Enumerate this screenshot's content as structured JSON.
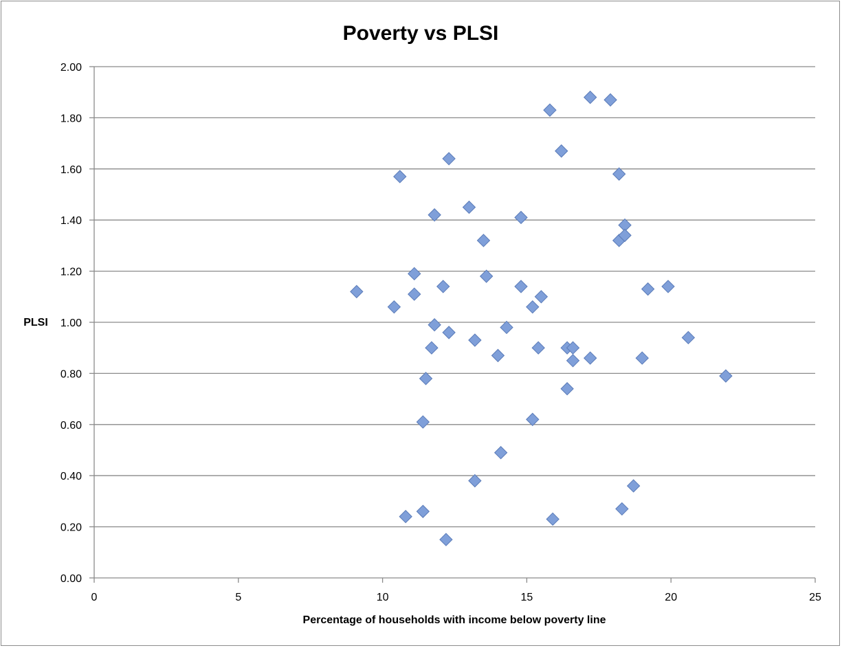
{
  "chart_data": {
    "type": "scatter",
    "title": "Poverty vs PLSI",
    "xlabel": "Percentage of households with income below poverty line",
    "ylabel": "PLSI",
    "xlim": [
      0,
      25
    ],
    "ylim": [
      0,
      2
    ],
    "x_ticks": [
      "0",
      "5",
      "10",
      "15",
      "20",
      "25"
    ],
    "y_ticks": [
      "0.00",
      "0.20",
      "0.40",
      "0.60",
      "0.80",
      "1.00",
      "1.20",
      "1.40",
      "1.60",
      "1.80",
      "2.00"
    ],
    "grid": "horizontal",
    "legend": "none",
    "marker": "diamond",
    "marker_color": "#7f9fd9",
    "series": [
      {
        "points": [
          [
            9.1,
            1.12
          ],
          [
            10.4,
            1.06
          ],
          [
            10.6,
            1.57
          ],
          [
            10.8,
            0.24
          ],
          [
            11.1,
            1.19
          ],
          [
            11.1,
            1.11
          ],
          [
            11.4,
            0.26
          ],
          [
            11.4,
            0.61
          ],
          [
            11.5,
            0.78
          ],
          [
            11.7,
            0.9
          ],
          [
            11.8,
            0.99
          ],
          [
            11.8,
            1.42
          ],
          [
            12.1,
            1.14
          ],
          [
            12.2,
            0.15
          ],
          [
            12.3,
            0.96
          ],
          [
            12.3,
            1.64
          ],
          [
            13.0,
            1.45
          ],
          [
            13.2,
            0.93
          ],
          [
            13.2,
            0.38
          ],
          [
            13.5,
            1.32
          ],
          [
            13.6,
            1.18
          ],
          [
            14.0,
            0.87
          ],
          [
            14.1,
            0.49
          ],
          [
            14.3,
            0.98
          ],
          [
            14.8,
            1.41
          ],
          [
            14.8,
            1.14
          ],
          [
            15.2,
            1.06
          ],
          [
            15.2,
            0.62
          ],
          [
            15.4,
            0.9
          ],
          [
            15.5,
            1.1
          ],
          [
            15.8,
            1.83
          ],
          [
            15.9,
            0.23
          ],
          [
            16.2,
            1.67
          ],
          [
            16.4,
            0.9
          ],
          [
            16.4,
            0.74
          ],
          [
            16.6,
            0.9
          ],
          [
            16.6,
            0.85
          ],
          [
            17.2,
            1.88
          ],
          [
            17.2,
            0.86
          ],
          [
            17.9,
            1.87
          ],
          [
            18.2,
            1.58
          ],
          [
            18.2,
            1.32
          ],
          [
            18.3,
            0.27
          ],
          [
            18.4,
            1.38
          ],
          [
            18.4,
            1.34
          ],
          [
            18.7,
            0.36
          ],
          [
            19.0,
            0.86
          ],
          [
            19.2,
            1.13
          ],
          [
            19.9,
            1.14
          ],
          [
            20.6,
            0.94
          ],
          [
            21.9,
            0.79
          ]
        ]
      }
    ]
  }
}
